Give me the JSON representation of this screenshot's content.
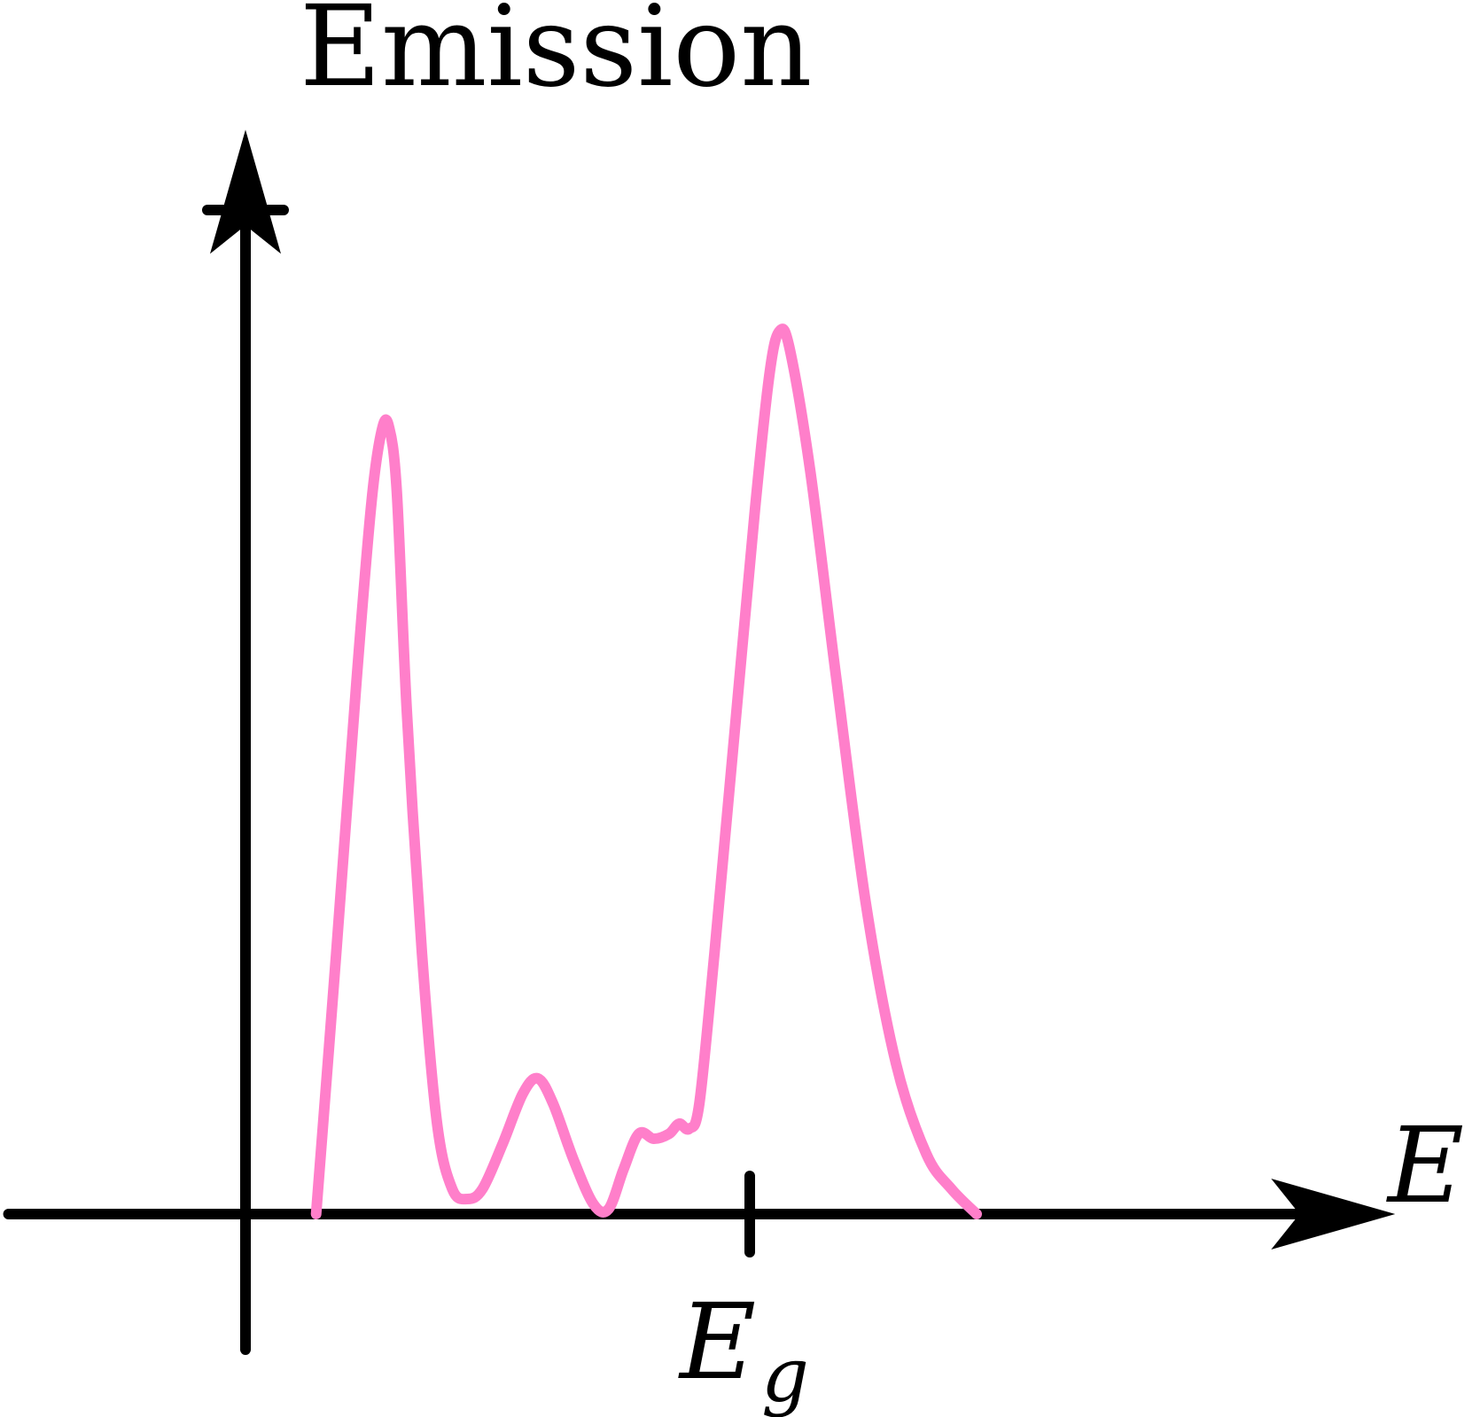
{
  "chart_data": {
    "type": "line",
    "ylabel": "Emission",
    "xlabel": "E",
    "x_tick": {
      "label_main": "E",
      "label_sub": "g",
      "x": 5.0
    },
    "y_tick": {
      "y": 10.0
    },
    "xlim": [
      -2.35,
      11.4
    ],
    "ylim": [
      -1.35,
      10.8
    ],
    "grid": false,
    "legend": "none",
    "series": [
      {
        "color": "#ff7fca",
        "points": [
          [
            0.7,
            0.0
          ],
          [
            0.9,
            2.6
          ],
          [
            1.1,
            5.3
          ],
          [
            1.25,
            7.1
          ],
          [
            1.35,
            7.8
          ],
          [
            1.42,
            7.85
          ],
          [
            1.5,
            7.2
          ],
          [
            1.6,
            5.0
          ],
          [
            1.75,
            2.6
          ],
          [
            1.9,
            0.9
          ],
          [
            2.05,
            0.25
          ],
          [
            2.2,
            0.15
          ],
          [
            2.35,
            0.25
          ],
          [
            2.55,
            0.7
          ],
          [
            2.75,
            1.2
          ],
          [
            2.9,
            1.35
          ],
          [
            3.05,
            1.1
          ],
          [
            3.25,
            0.55
          ],
          [
            3.45,
            0.1
          ],
          [
            3.6,
            0.05
          ],
          [
            3.75,
            0.45
          ],
          [
            3.9,
            0.8
          ],
          [
            4.05,
            0.75
          ],
          [
            4.2,
            0.8
          ],
          [
            4.3,
            0.9
          ],
          [
            4.4,
            0.85
          ],
          [
            4.5,
            1.1
          ],
          [
            4.65,
            2.6
          ],
          [
            4.85,
            4.8
          ],
          [
            5.05,
            7.0
          ],
          [
            5.2,
            8.4
          ],
          [
            5.3,
            8.8
          ],
          [
            5.4,
            8.6
          ],
          [
            5.6,
            7.4
          ],
          [
            5.85,
            5.4
          ],
          [
            6.15,
            3.1
          ],
          [
            6.45,
            1.5
          ],
          [
            6.75,
            0.6
          ],
          [
            7.0,
            0.25
          ],
          [
            7.25,
            0.0
          ]
        ]
      }
    ],
    "colors": {
      "axis": "#000000",
      "curve": "#ff7fca"
    }
  }
}
